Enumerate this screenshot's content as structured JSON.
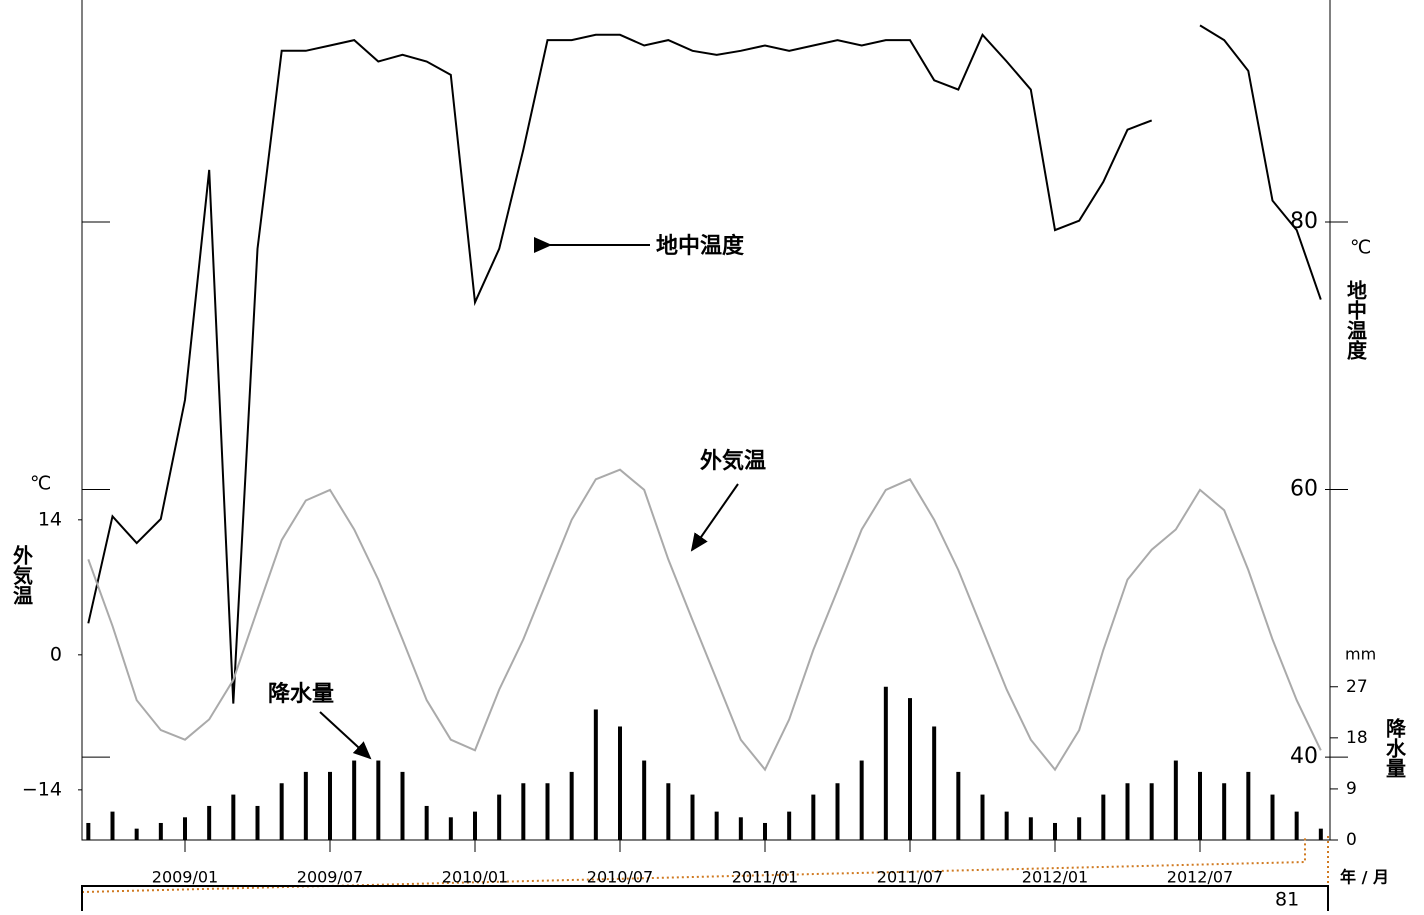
{
  "chart_data": {
    "type": "line",
    "x": [
      "2008/09",
      "2008/10",
      "2008/11",
      "2008/12",
      "2009/01",
      "2009/02",
      "2009/03",
      "2009/04",
      "2009/05",
      "2009/06",
      "2009/07",
      "2009/08",
      "2009/09",
      "2009/10",
      "2009/11",
      "2009/12",
      "2010/01",
      "2010/02",
      "2010/03",
      "2010/04",
      "2010/05",
      "2010/06",
      "2010/07",
      "2010/08",
      "2010/09",
      "2010/10",
      "2010/11",
      "2010/12",
      "2011/01",
      "2011/02",
      "2011/03",
      "2011/04",
      "2011/05",
      "2011/06",
      "2011/07",
      "2011/08",
      "2011/09",
      "2011/10",
      "2011/11",
      "2011/12",
      "2012/01",
      "2012/02",
      "2012/03",
      "2012/04",
      "2012/05",
      "2012/06",
      "2012/07",
      "2012/08",
      "2012/09",
      "2012/10",
      "2012/11",
      "2012/12"
    ],
    "xticks": [
      "2009/01",
      "2009/07",
      "2010/01",
      "2010/07",
      "2011/01",
      "2011/07",
      "2012/01",
      "2012/07"
    ],
    "xlabel": "年 / 月",
    "ylim": [
      -19.2,
      67.9
    ],
    "yticks": [
      {
        "value": -14,
        "label": "−14"
      },
      0,
      14
    ],
    "ylabel": "外気温",
    "yunit": "℃",
    "y2lim": [
      33.8,
      96.6
    ],
    "y2ticks": [
      40,
      60,
      80
    ],
    "y2label": "地中温度",
    "y2unit": "℃",
    "y3lim": [
      0,
      148
    ],
    "y3ticks": [
      0,
      9,
      18,
      27
    ],
    "y3label": "降水量",
    "y3unit": "mm",
    "series": [
      {
        "name": "地中温度",
        "color": "#000000",
        "axis": "y2",
        "kind": "line",
        "values": [
          50,
          58,
          56,
          57.8,
          66.7,
          83.9,
          44,
          78,
          92.8,
          92.8,
          93.2,
          93.6,
          92,
          92.5,
          92,
          91,
          74,
          78,
          85.4,
          93.6,
          93.6,
          94,
          94,
          93.2,
          93.6,
          92.8,
          92.5,
          92.8,
          93.2,
          92.8,
          93.2,
          93.6,
          93.2,
          93.6,
          93.6,
          90.6,
          89.9,
          94,
          92,
          89.9,
          79.4,
          80.1,
          83,
          86.9,
          87.6,
          null,
          94.7,
          93.6,
          91.3,
          81.6,
          79.4,
          74.2
        ]
      },
      {
        "name": "外気温",
        "color": "#aaaaaa",
        "axis": "y",
        "kind": "line",
        "values": [
          9.9,
          3,
          -4.7,
          -7.8,
          -8.8,
          -6.7,
          -2.6,
          4.7,
          11.9,
          16,
          17.1,
          13,
          7.8,
          1.6,
          -4.7,
          -8.8,
          -9.9,
          -3.6,
          1.6,
          7.8,
          14,
          18.2,
          19.2,
          17.1,
          9.9,
          3.6,
          -2.6,
          -8.8,
          -11.9,
          -6.7,
          0.5,
          6.7,
          13,
          17.1,
          18.2,
          14,
          8.8,
          2.6,
          -3.6,
          -8.8,
          -11.9,
          -7.8,
          0.5,
          7.8,
          10.9,
          13,
          17.1,
          15,
          8.8,
          1.6,
          -4.7,
          -9.9
        ]
      },
      {
        "name": "降水量",
        "color": "#000000",
        "axis": "y3",
        "kind": "bar",
        "values": [
          3,
          5,
          2,
          3,
          4,
          6,
          8,
          6,
          10,
          12,
          12,
          14,
          14,
          12,
          6,
          4,
          5,
          8,
          10,
          10,
          12,
          23,
          20,
          14,
          10,
          8,
          5,
          4,
          3,
          5,
          8,
          10,
          14,
          27,
          25,
          20,
          12,
          8,
          5,
          4,
          3,
          4,
          8,
          10,
          10,
          14,
          12,
          10,
          12,
          8,
          5,
          2
        ]
      }
    ],
    "footer_number": "81"
  }
}
